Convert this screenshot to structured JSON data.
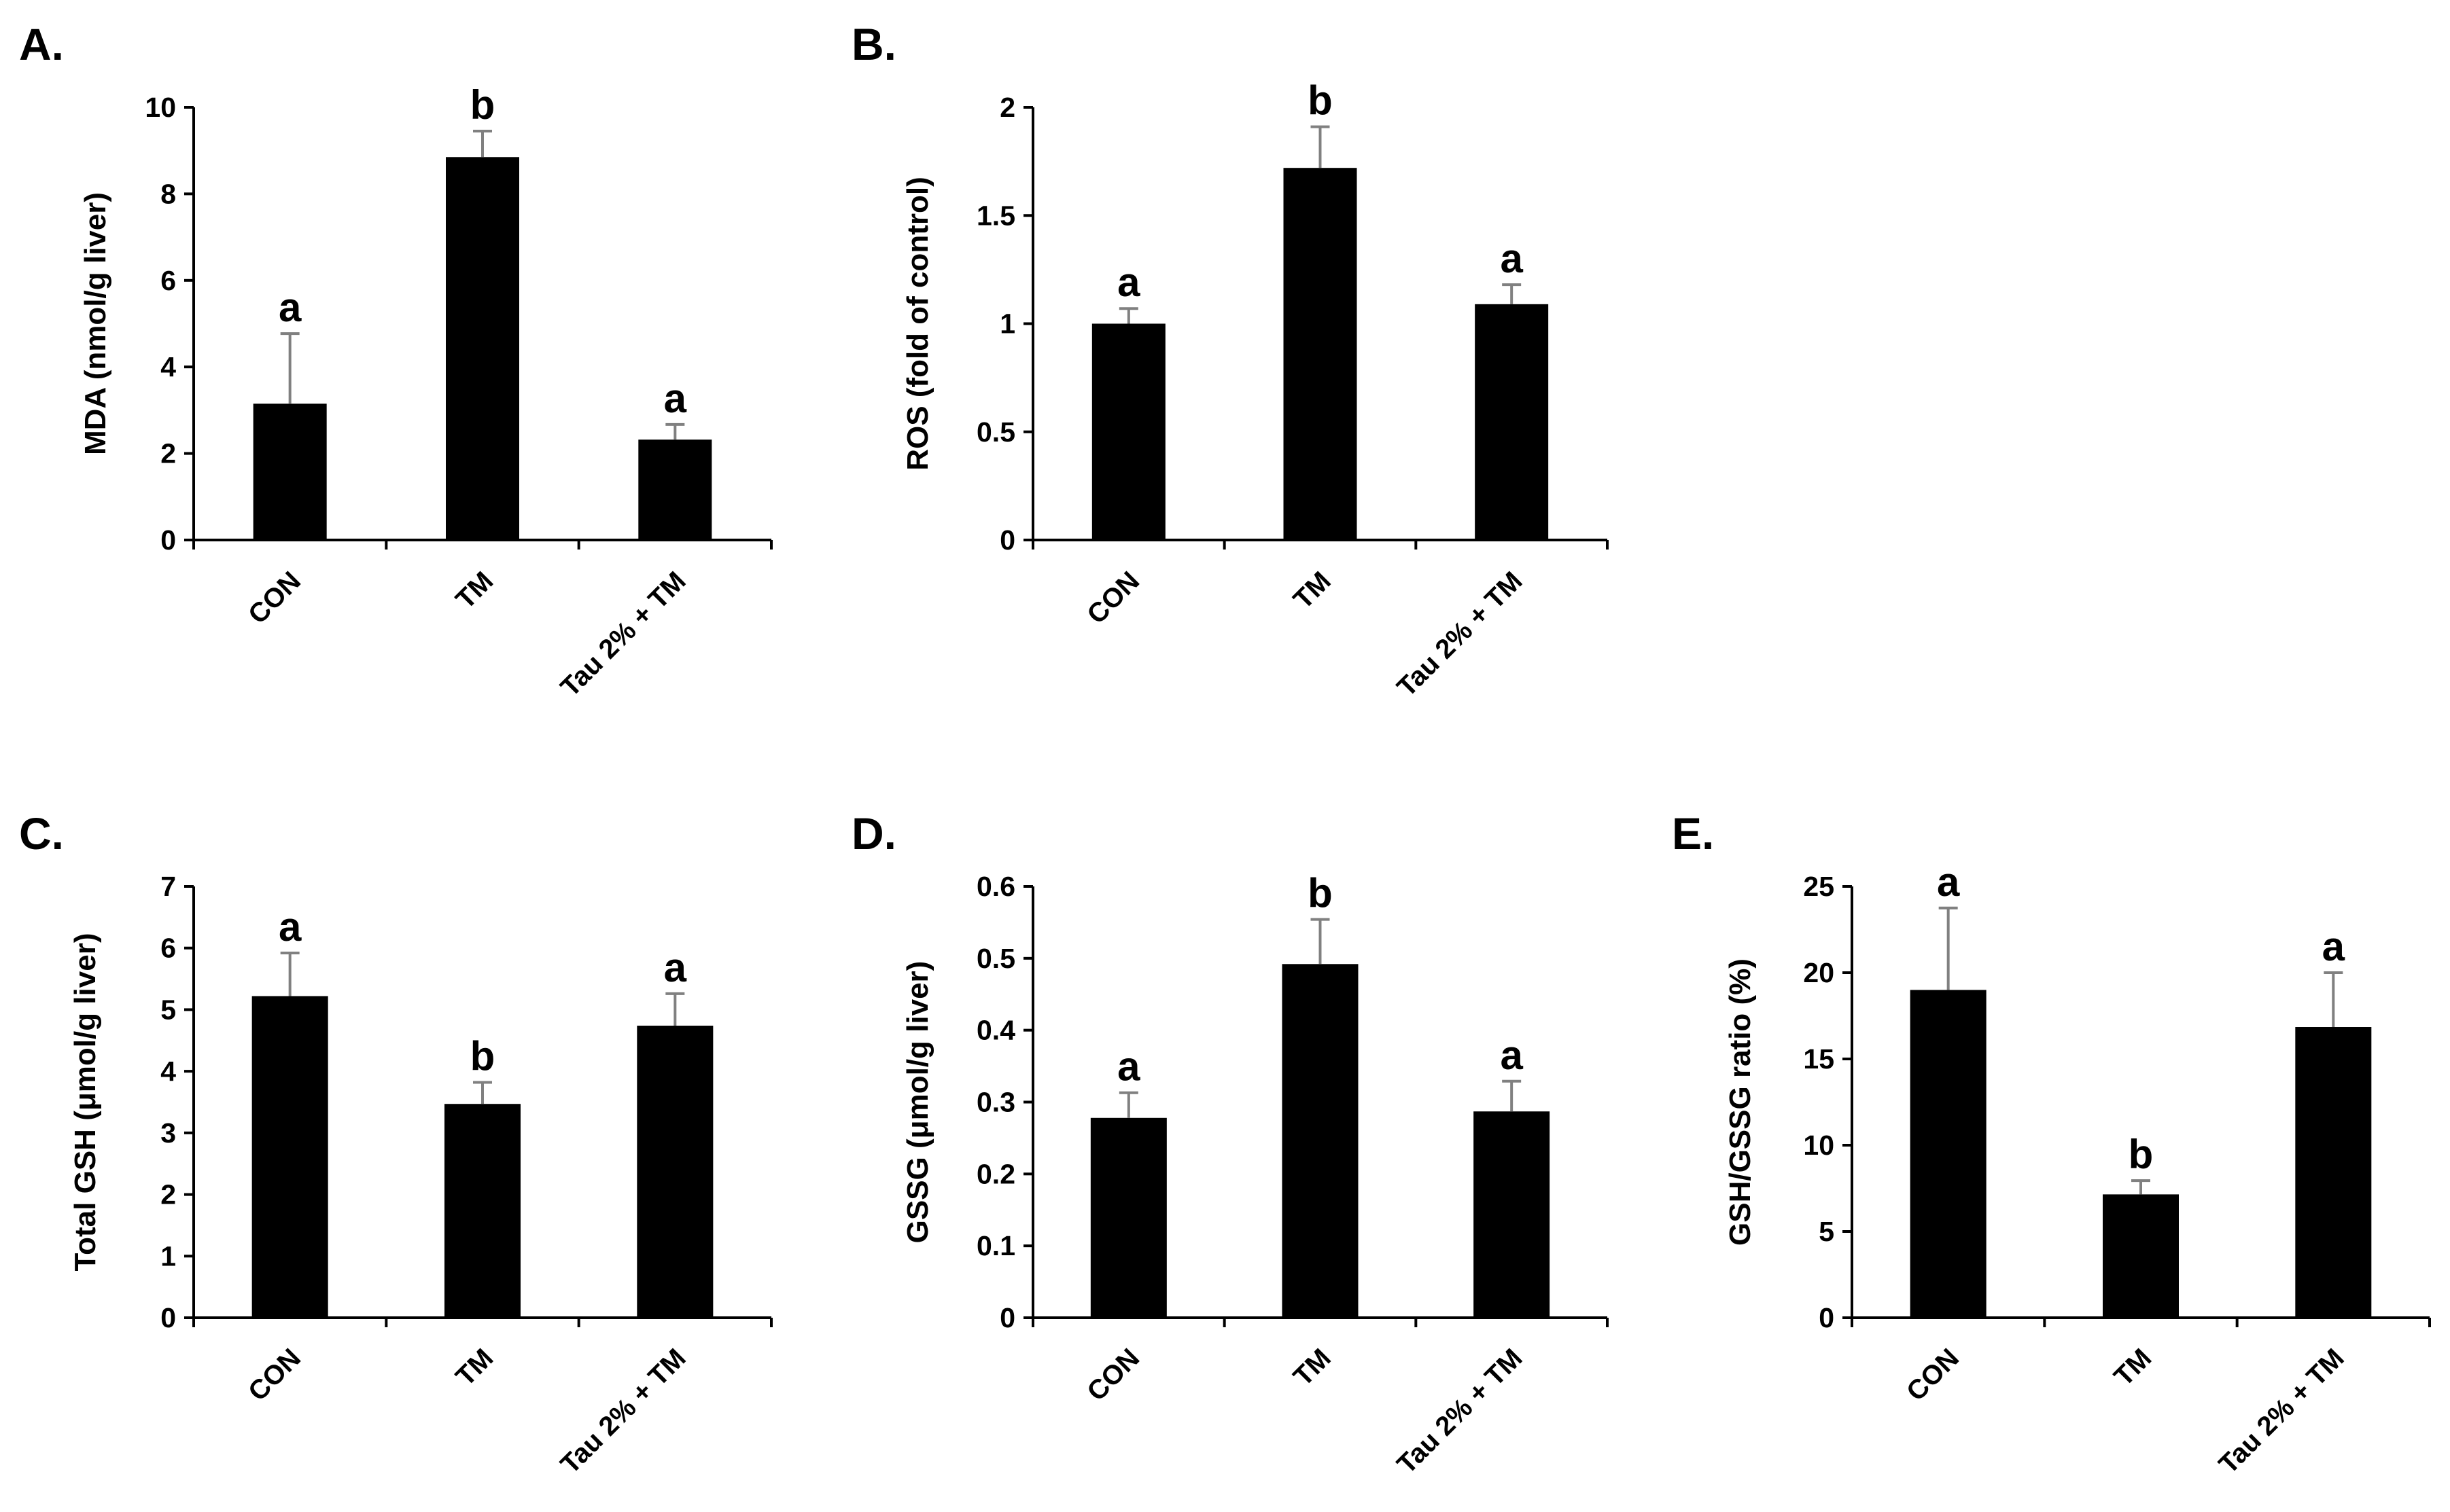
{
  "chart_data": [
    {
      "type": "bar",
      "panel": "A.",
      "categories": [
        "CON",
        "TM",
        "Tau 2% + TM"
      ],
      "values": [
        3.15,
        8.85,
        2.32
      ],
      "errors": [
        1.62,
        0.6,
        0.35
      ],
      "sig": [
        "a",
        "b",
        "a"
      ],
      "ylabel": "MDA (nmol/g liver)",
      "ylim": [
        0,
        10
      ],
      "yticks": [
        "0",
        "2",
        "4",
        "6",
        "8",
        "10"
      ],
      "ytick_values": [
        0,
        2,
        4,
        6,
        8,
        10
      ],
      "grid": false
    },
    {
      "type": "bar",
      "panel": "B.",
      "categories": [
        "CON",
        "TM",
        "Tau 2% + TM"
      ],
      "values": [
        1.0,
        1.72,
        1.09
      ],
      "errors": [
        0.07,
        0.19,
        0.09
      ],
      "sig": [
        "a",
        "b",
        "a"
      ],
      "ylabel": "ROS (fold of control)",
      "ylim": [
        0,
        2
      ],
      "yticks": [
        "0",
        "0.5",
        "1",
        "1.5",
        "2"
      ],
      "ytick_values": [
        0,
        0.5,
        1,
        1.5,
        2
      ],
      "grid": false
    },
    {
      "type": "bar",
      "panel": "C.",
      "categories": [
        "CON",
        "TM",
        "Tau 2% + TM"
      ],
      "values": [
        5.22,
        3.47,
        4.74
      ],
      "errors": [
        0.7,
        0.35,
        0.52
      ],
      "sig": [
        "a",
        "b",
        "a"
      ],
      "ylabel": "Total GSH (μmol/g liver)",
      "ylim": [
        0,
        7
      ],
      "yticks": [
        "0",
        "1",
        "2",
        "3",
        "4",
        "5",
        "6",
        "7"
      ],
      "ytick_values": [
        0,
        1,
        2,
        3,
        4,
        5,
        6,
        7
      ],
      "grid": false
    },
    {
      "type": "bar",
      "panel": "D.",
      "categories": [
        "CON",
        "TM",
        "Tau 2% + TM"
      ],
      "values": [
        0.278,
        0.492,
        0.287
      ],
      "errors": [
        0.035,
        0.062,
        0.042
      ],
      "sig": [
        "a",
        "b",
        "a"
      ],
      "ylabel": "GSSG (μmol/g liver)",
      "ylim": [
        0,
        0.6
      ],
      "yticks": [
        "0",
        "0.1",
        "0.2",
        "0.3",
        "0.4",
        "0.5",
        "0.6"
      ],
      "ytick_values": [
        0,
        0.1,
        0.2,
        0.3,
        0.4,
        0.5,
        0.6
      ],
      "grid": false
    },
    {
      "type": "bar",
      "panel": "E.",
      "categories": [
        "CON",
        "TM",
        "Tau 2% + TM"
      ],
      "values": [
        19.0,
        7.15,
        16.85
      ],
      "errors": [
        4.75,
        0.8,
        3.15
      ],
      "sig": [
        "a",
        "b",
        "a"
      ],
      "ylabel": "GSH/GSSG ratio (%)",
      "ylim": [
        0,
        25
      ],
      "yticks": [
        "0",
        "5",
        "10",
        "15",
        "20",
        "25"
      ],
      "ytick_values": [
        0,
        5,
        10,
        15,
        20,
        25
      ],
      "grid": false
    }
  ],
  "colors": {
    "bar": "#000000",
    "error_bar": "#808080",
    "axis": "#000000"
  }
}
